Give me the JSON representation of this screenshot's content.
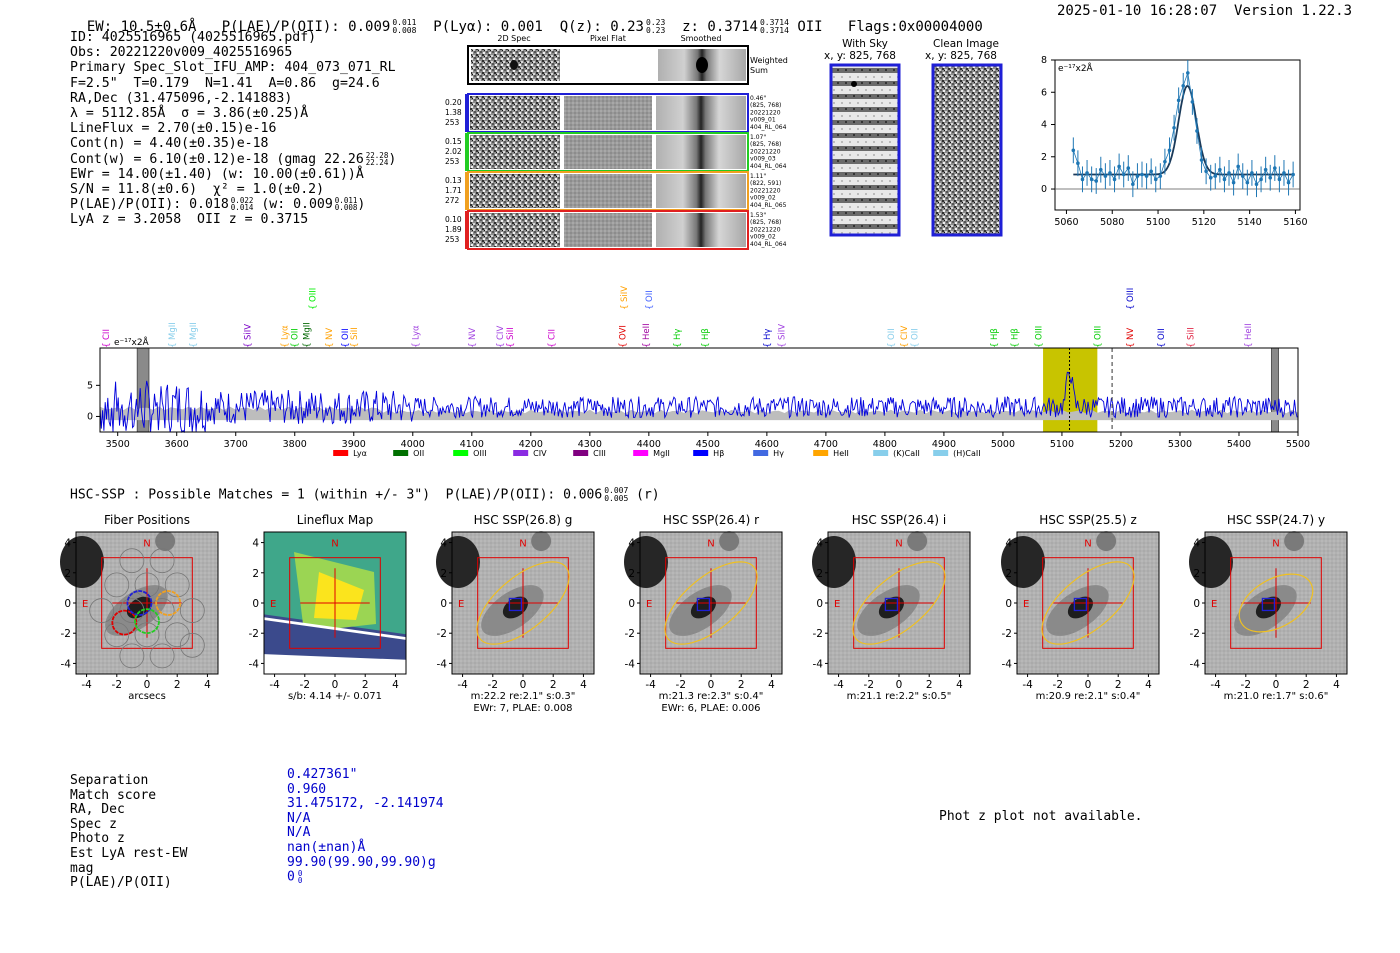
{
  "header": {
    "ew": "EW: 10.5±0.6Å",
    "plae_label": "P(LAE)/P(OII): 0.009",
    "plae_sup": "0.011",
    "plae_sub": "0.008",
    "plya": "P(Lyα): 0.001",
    "qz_label": "Q(z): 0.23",
    "qz_sup": "0.23",
    "qz_sub": "0.23",
    "z_label": "z: 0.3714",
    "z_sup": "0.3714",
    "z_sub": "0.3714",
    "z_line": "OII",
    "flags": "Flags:0x00004000",
    "datetime": "2025-01-10 16:28:07",
    "version": "Version 1.22.3"
  },
  "info": {
    "id": "ID: 4025516965 (4025516965.pdf)",
    "obs": "Obs: 20221220v009_4025516965",
    "primary": "Primary Spec_Slot_IFU_AMP: 404_073_071_RL",
    "params": "F=2.5\"  T=0.179  N=1.41  A=0.86  g=24.6",
    "radec": "RA,Dec (31.475096,-2.141883)",
    "lambda": "λ = 5112.85Å  σ = 3.86(±0.25)Å",
    "lineflux": "LineFlux = 2.70(±0.15)e-16",
    "contn": "Cont(n) = 4.40(±0.35)e-18",
    "contw": "Cont(w) = 6.10(±0.12)e-18 (gmag 22.26",
    "contw_sup": "22.28",
    "contw_sub": "22.24",
    "contw_end": ")",
    "ewr": "EWr = 14.00(±1.40) (w: 10.00(±0.61))Å",
    "sn": "S/N = 11.8(±0.6)  χ² = 1.0(±0.2)",
    "plae": "P(LAE)/P(OII): 0.018",
    "plae_sup": "0.022",
    "plae_sub": "0.014",
    "plae_w": "(w: 0.009",
    "plae_w_sup": "0.011",
    "plae_w_sub": "0.008",
    "plae_w_end": ")",
    "z": "LyA z = 3.2058  OII z = 0.3715"
  },
  "cutouts": {
    "col_titles": [
      "2D Spec",
      "Pixel Flat",
      "Smoothed"
    ],
    "weighted_label": "Weighted\nSum",
    "rows": [
      {
        "left": [
          "0.20",
          "1.38",
          "253"
        ],
        "right": [
          "0.46\"",
          "(825, 768)",
          "20221220",
          "v009_01",
          "404_RL_064"
        ],
        "color": "#1f1fd6"
      },
      {
        "left": [
          "0.15",
          "2.02",
          "253"
        ],
        "right": [
          "1.07\"",
          "(825, 768)",
          "20221220",
          "v009_03",
          "404_RL_064"
        ],
        "color": "#22cc22"
      },
      {
        "left": [
          "0.13",
          "1.71",
          "272"
        ],
        "right": [
          "1.11\"",
          "(822, 591)",
          "20221220",
          "v009_02",
          "404_RL_065"
        ],
        "color": "#f0a020"
      },
      {
        "left": [
          "0.10",
          "1.89",
          "253"
        ],
        "right": [
          "1.53\"",
          "(825, 768)",
          "20221220",
          "v009_02",
          "404_RL_064"
        ],
        "color": "#e02020"
      }
    ]
  },
  "sky": {
    "with_sky_title": "With Sky",
    "with_sky_xy": "x, y: 825, 768",
    "clean_title": "Clean Image",
    "clean_xy": "x, y: 825, 768"
  },
  "chart_data": [
    {
      "type": "line",
      "title": "",
      "unit_label": "e⁻¹⁷x2Å",
      "xlim": [
        5055,
        5162
      ],
      "ylim": [
        -1.3,
        8
      ],
      "xticks": [
        5060,
        5080,
        5100,
        5120,
        5140,
        5160
      ],
      "yticks": [
        0,
        2,
        4,
        6,
        8
      ],
      "x": [
        5063,
        5065,
        5067,
        5069,
        5071,
        5073,
        5075,
        5077,
        5079,
        5081,
        5083,
        5085,
        5087,
        5089,
        5091,
        5093,
        5095,
        5097,
        5099,
        5101,
        5103,
        5105,
        5107,
        5109,
        5111,
        5113,
        5115,
        5117,
        5119,
        5121,
        5123,
        5125,
        5127,
        5129,
        5131,
        5133,
        5135,
        5137,
        5139,
        5141,
        5143,
        5145,
        5147,
        5149,
        5151,
        5153,
        5155,
        5157,
        5159
      ],
      "y": [
        2.4,
        1.6,
        0.6,
        1.0,
        0.6,
        0.5,
        1.2,
        0.8,
        1.0,
        0.6,
        1.4,
        0.9,
        1.3,
        0.3,
        0.8,
        0.9,
        0.8,
        1.1,
        0.6,
        0.8,
        1.7,
        2.4,
        3.8,
        5.5,
        6.4,
        7.2,
        5.4,
        3.6,
        1.8,
        1.1,
        0.7,
        0.8,
        1.2,
        0.6,
        1.0,
        0.4,
        1.4,
        0.8,
        0.4,
        1.0,
        0.3,
        0.6,
        1.2,
        0.7,
        1.3,
        0.6,
        1.0,
        0.4,
        0.9
      ],
      "err": 0.8,
      "fit": {
        "center": 5112.85,
        "sigma": 3.86,
        "amplitude": 5.5,
        "baseline": 0.9
      }
    },
    {
      "type": "line",
      "title": "",
      "unit_label": "e⁻¹⁷x2Å",
      "xlim": [
        3470,
        5500
      ],
      "ylim": [
        -2.5,
        11
      ],
      "xticks": [
        3500,
        3600,
        3700,
        3800,
        3900,
        4000,
        4100,
        4200,
        4300,
        4400,
        4500,
        4600,
        4700,
        4800,
        4900,
        5000,
        5100,
        5200,
        5300,
        5400,
        5500
      ],
      "yticks": [
        0,
        5
      ],
      "highlight": [
        5068,
        5160
      ],
      "marker_z": 5112.85,
      "dashed_at": 5185,
      "hatched": [
        [
          3533,
          3553
        ],
        [
          5455,
          5467
        ]
      ],
      "lines": [
        {
          "name": "CII",
          "x": 3480,
          "color": "#cc00cc"
        },
        {
          "name": "MgII",
          "x": 3592,
          "color": "#87ceeb"
        },
        {
          "name": "MgII",
          "x": 3628,
          "color": "#87ceeb"
        },
        {
          "name": "SiIV",
          "x": 3720,
          "color": "#7b00c8"
        },
        {
          "name": "Lyα",
          "x": 3783,
          "color": "#ffa000"
        },
        {
          "name": "OII",
          "x": 3800,
          "color": "#00cc00"
        },
        {
          "name": "MgII",
          "x": 3820,
          "color": "#006600"
        },
        {
          "name": "OIII",
          "x": 3830,
          "color": "#00ee00",
          "upper": true
        },
        {
          "name": "NV",
          "x": 3858,
          "color": "#ffa000"
        },
        {
          "name": "OII",
          "x": 3885,
          "color": "#0000ff"
        },
        {
          "name": "SiII",
          "x": 3900,
          "color": "#ffa000"
        },
        {
          "name": "Lyα",
          "x": 4005,
          "color": "#a040e0"
        },
        {
          "name": "NV",
          "x": 4100,
          "color": "#a040e0"
        },
        {
          "name": "CIV",
          "x": 4148,
          "color": "#a040e0"
        },
        {
          "name": "SiII",
          "x": 4165,
          "color": "#cc00cc"
        },
        {
          "name": "CII",
          "x": 4235,
          "color": "#cc00cc"
        },
        {
          "name": "OVI",
          "x": 4355,
          "color": "#e00000"
        },
        {
          "name": "SiIV",
          "x": 4358,
          "color": "#ffa000",
          "upper": true
        },
        {
          "name": "OII",
          "x": 4400,
          "color": "#4060ff",
          "upper": true
        },
        {
          "name": "HeII",
          "x": 4395,
          "color": "#a000a0"
        },
        {
          "name": "Hγ",
          "x": 4448,
          "color": "#00cc00"
        },
        {
          "name": "Hβ",
          "x": 4495,
          "color": "#00cc00"
        },
        {
          "name": "Hγ",
          "x": 4600,
          "color": "#0000cc"
        },
        {
          "name": "SiIV",
          "x": 4625,
          "color": "#a040e0"
        },
        {
          "name": "OII",
          "x": 4810,
          "color": "#87ceeb"
        },
        {
          "name": "CIV",
          "x": 4832,
          "color": "#ffa000"
        },
        {
          "name": "OII",
          "x": 4850,
          "color": "#87ceeb"
        },
        {
          "name": "Hβ",
          "x": 4985,
          "color": "#00cc00"
        },
        {
          "name": "Hβ",
          "x": 5020,
          "color": "#00cc00"
        },
        {
          "name": "OIII",
          "x": 5060,
          "color": "#00cc00"
        },
        {
          "name": "OIII",
          "x": 5160,
          "color": "#00cc00"
        },
        {
          "name": "NV",
          "x": 5215,
          "color": "#e00000"
        },
        {
          "name": "OIII",
          "x": 5215,
          "color": "#0000cc",
          "upper": true
        },
        {
          "name": "OII",
          "x": 5268,
          "color": "#0000cc"
        },
        {
          "name": "SiII",
          "x": 5318,
          "color": "#e02040"
        },
        {
          "name": "HeII",
          "x": 5415,
          "color": "#a040e0"
        }
      ],
      "legend": [
        {
          "name": "Lyα",
          "color": "#ff0000"
        },
        {
          "name": "OII",
          "color": "#007000"
        },
        {
          "name": "OIII",
          "color": "#00ff00"
        },
        {
          "name": "CIV",
          "color": "#8a2be2"
        },
        {
          "name": "CIII",
          "color": "#800080"
        },
        {
          "name": "MgII",
          "color": "#ff00ff"
        },
        {
          "name": "Hβ",
          "color": "#0000ff"
        },
        {
          "name": "Hγ",
          "color": "#4169e1"
        },
        {
          "name": "HeII",
          "color": "#ffa500"
        },
        {
          "name": "(K)CaII",
          "color": "#87ceeb"
        },
        {
          "name": "(H)CaII",
          "color": "#87ceeb"
        }
      ]
    }
  ],
  "match": {
    "header": "HSC-SSP : Possible Matches = 1 (within +/- 3\")  P(LAE)/P(OII): 0.006",
    "header_sup": "0.007",
    "header_sub": "0.005",
    "header_end": "(r)"
  },
  "panels": [
    {
      "title": "Fiber Positions",
      "caption1": "arcsecs",
      "caption2": ""
    },
    {
      "title": "Lineflux Map",
      "caption1": "s/b: 4.14 +/- 0.071",
      "caption2": ""
    },
    {
      "title": "HSC SSP(26.8) g",
      "caption1": "m:22.2  re:2.1\"  s:0.3\"",
      "caption2": "EWr: 7, PLAE: 0.008"
    },
    {
      "title": "HSC SSP(26.4) r",
      "caption1": "m:21.3  re:2.3\"  s:0.4\"",
      "caption2": "EWr: 6, PLAE: 0.006"
    },
    {
      "title": "HSC SSP(26.4) i",
      "caption1": "m:21.1  re:2.2\"  s:0.5\"",
      "caption2": ""
    },
    {
      "title": "HSC SSP(25.5) z",
      "caption1": "m:20.9  re:2.1\"  s:0.4\"",
      "caption2": ""
    },
    {
      "title": "HSC SSP(24.7) y",
      "caption1": "m:21.0  re:1.7\"  s:0.6\"",
      "caption2": ""
    }
  ],
  "panel_axes": {
    "ticks": [
      "-4",
      "-2",
      "0",
      "2",
      "4"
    ],
    "north": "N",
    "east": "E"
  },
  "match_details": {
    "labels": [
      "Separation",
      "Match score",
      "RA, Dec",
      "Spec z",
      "Photo z",
      "Est LyA rest-EW",
      "mag",
      "P(LAE)/P(OII)"
    ],
    "values": [
      "0.427361\"",
      "0.960",
      "31.475172, -2.141974",
      "N/A",
      "N/A",
      "nan(±nan)Å",
      "99.90(99.90,99.90)g",
      "0"
    ],
    "plae_sup": "0",
    "plae_sub": "0"
  },
  "photz": "Phot z plot not available."
}
